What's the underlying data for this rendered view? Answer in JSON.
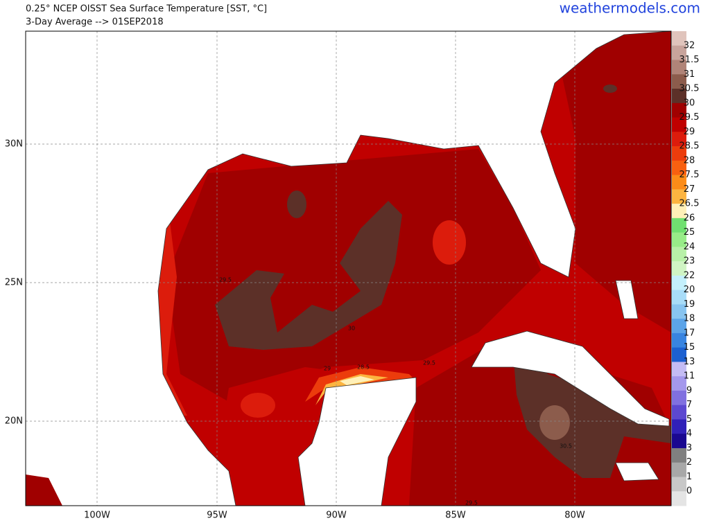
{
  "header": {
    "title": "0.25° NCEP OISST Sea Surface Temperature [SST, °C]",
    "subtitle": "3-Day Average --> 01SEP2018",
    "site": "weathermodels.com"
  },
  "map": {
    "lon_labels": [
      "100W",
      "95W",
      "90W",
      "85W",
      "80W"
    ],
    "lat_labels": [
      "30N",
      "25N",
      "20N"
    ],
    "contour_labels": [
      "29.5",
      "30",
      "29",
      "28.5",
      "29.5",
      "30.5",
      "29.5"
    ]
  },
  "colorbar": {
    "labels": [
      32,
      31.5,
      31,
      30.5,
      30,
      29.5,
      29,
      28.5,
      28,
      27.5,
      27,
      26.5,
      26,
      25,
      24,
      23,
      22,
      20,
      19,
      18,
      17,
      15,
      13,
      11,
      9,
      7,
      5,
      4,
      3,
      2,
      1,
      0
    ],
    "colors": [
      "#e0c4bc",
      "#c8a49c",
      "#b08478",
      "#8c5c4c",
      "#5c3028",
      "#a00000",
      "#c00000",
      "#dc1c0c",
      "#ec3c0c",
      "#f86010",
      "#fc8c18",
      "#fcb440",
      "#fff0b8",
      "#70e070",
      "#98ec88",
      "#b8f0a8",
      "#d0f4c4",
      "#c4f0fc",
      "#a8dcf8",
      "#88c4f0",
      "#5ca4e8",
      "#3884e0",
      "#1c60d0",
      "#c4bcf4",
      "#a498ec",
      "#8070e0",
      "#5c48d0",
      "#3020b8",
      "#1a0890",
      "#808080",
      "#a8a8a8",
      "#c8c8c8",
      "#e4e4e4"
    ]
  }
}
